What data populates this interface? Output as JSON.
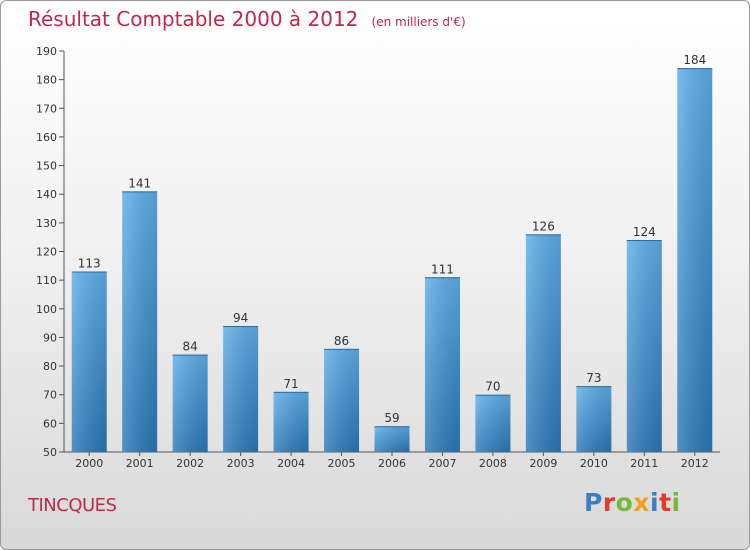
{
  "header": {
    "title": "Résultat Comptable 2000 à 2012",
    "subtitle": "(en milliers d'€)"
  },
  "commune": "TINCQUES",
  "logo": {
    "text": "Proxiti",
    "letters": [
      {
        "char": "P",
        "color": "#3a7fc4"
      },
      {
        "char": "r",
        "color": "#e23c2c"
      },
      {
        "char": "o",
        "color": "#7ab83b"
      },
      {
        "char": "x",
        "color": "#f0a21b"
      },
      {
        "char": "i",
        "color": "#3a7fc4"
      },
      {
        "char": "t",
        "color": "#e23c2c"
      },
      {
        "char": "i",
        "color": "#7ab83b"
      }
    ]
  },
  "chart_data": {
    "type": "bar",
    "title": "Résultat Comptable 2000 à 2012",
    "subtitle": "(en milliers d'€)",
    "xlabel": "",
    "ylabel": "",
    "categories": [
      "2000",
      "2001",
      "2002",
      "2003",
      "2004",
      "2005",
      "2006",
      "2007",
      "2008",
      "2009",
      "2010",
      "2011",
      "2012"
    ],
    "values": [
      113,
      141,
      84,
      94,
      71,
      86,
      59,
      111,
      70,
      126,
      73,
      124,
      184
    ],
    "ylim": [
      50,
      190
    ],
    "ytick_step": 10,
    "grid": false,
    "bar_color": "#3d8fd6"
  }
}
